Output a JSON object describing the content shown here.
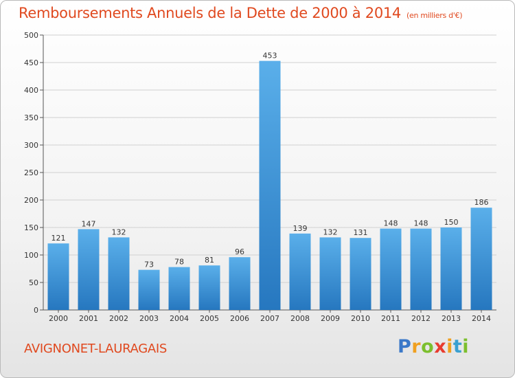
{
  "title": "Remboursements Annuels de la Dette de 2000 à 2014",
  "subtitle": "(en milliers d'€)",
  "commune": "AVIGNONET-LAURAGAIS",
  "logo": "Proxiti",
  "colors": {
    "title": "#e0491f",
    "bar_top": "#5aafea",
    "bar_bottom": "#2677bf",
    "grid": "#d0d0d0"
  },
  "chart_data": {
    "type": "bar",
    "categories": [
      "2000",
      "2001",
      "2002",
      "2003",
      "2004",
      "2005",
      "2006",
      "2007",
      "2008",
      "2009",
      "2010",
      "2011",
      "2012",
      "2013",
      "2014"
    ],
    "values": [
      121,
      147,
      132,
      73,
      78,
      81,
      96,
      453,
      139,
      132,
      131,
      148,
      148,
      150,
      186
    ],
    "ylim": [
      0,
      500
    ],
    "yticks": [
      0,
      50,
      100,
      150,
      200,
      250,
      300,
      350,
      400,
      450,
      500
    ],
    "grid": true,
    "legend": "none"
  }
}
